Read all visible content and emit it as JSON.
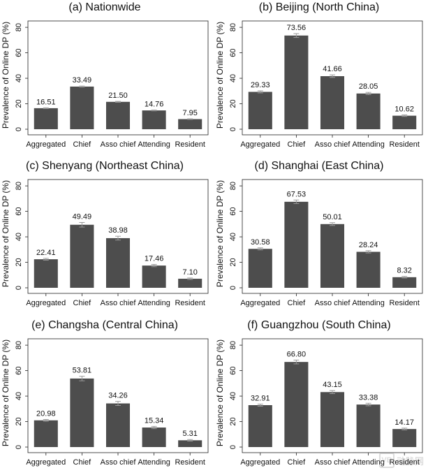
{
  "chart_data": [
    {
      "type": "bar",
      "title": "(a) Nationwide",
      "ylabel": "Prevalence of Online DP (%)",
      "categories": [
        "Aggregated",
        "Chief",
        "Asso chief",
        "Attending",
        "Resident"
      ],
      "values": [
        16.51,
        33.49,
        21.5,
        14.76,
        7.95
      ],
      "value_labels": [
        "16.51",
        "33.49",
        "21.50",
        "14.76",
        "7.95"
      ],
      "error": [
        0.3,
        0.4,
        0.35,
        0.3,
        0.25
      ],
      "ylim": [
        0,
        85
      ],
      "yticks": [
        0,
        20,
        40,
        60,
        80
      ],
      "bar_color": "#4d4d4d",
      "grid": false
    },
    {
      "type": "bar",
      "title": "(b) Beijing (North China)",
      "ylabel": "Prevalence of Online DP (%)",
      "categories": [
        "Aggregated",
        "Chief",
        "Asso chief",
        "Attending",
        "Resident"
      ],
      "values": [
        29.33,
        73.56,
        41.66,
        28.05,
        10.62
      ],
      "value_labels": [
        "29.33",
        "73.56",
        "41.66",
        "28.05",
        "10.62"
      ],
      "error": [
        0.8,
        1.5,
        1.0,
        0.9,
        0.6
      ],
      "ylim": [
        0,
        85
      ],
      "yticks": [
        0,
        20,
        40,
        60,
        80
      ],
      "bar_color": "#4d4d4d",
      "grid": false
    },
    {
      "type": "bar",
      "title": "(c) Shenyang (Northeast China)",
      "ylabel": "Prevalence of Online DP (%)",
      "categories": [
        "Aggregated",
        "Chief",
        "Asso chief",
        "Attending",
        "Resident"
      ],
      "values": [
        22.41,
        49.49,
        38.98,
        17.46,
        7.1
      ],
      "value_labels": [
        "22.41",
        "49.49",
        "38.98",
        "17.46",
        "7.10"
      ],
      "error": [
        0.7,
        1.8,
        1.5,
        0.9,
        0.6
      ],
      "ylim": [
        0,
        85
      ],
      "yticks": [
        0,
        20,
        40,
        60,
        80
      ],
      "bar_color": "#4d4d4d",
      "grid": false
    },
    {
      "type": "bar",
      "title": "(d) Shanghai (East China)",
      "ylabel": "Prevalence of Online DP (%)",
      "categories": [
        "Aggregated",
        "Chief",
        "Asso chief",
        "Attending",
        "Resident"
      ],
      "values": [
        30.58,
        67.53,
        50.01,
        28.24,
        8.32
      ],
      "value_labels": [
        "30.58",
        "67.53",
        "50.01",
        "28.24",
        "8.32"
      ],
      "error": [
        0.8,
        1.4,
        1.1,
        0.9,
        0.6
      ],
      "ylim": [
        0,
        85
      ],
      "yticks": [
        0,
        20,
        40,
        60,
        80
      ],
      "bar_color": "#4d4d4d",
      "grid": false
    },
    {
      "type": "bar",
      "title": "(e) Changsha (Central China)",
      "ylabel": "Prevalence of Online DP (%)",
      "categories": [
        "Aggregated",
        "Chief",
        "Asso chief",
        "Attending",
        "Resident"
      ],
      "values": [
        20.98,
        53.81,
        34.26,
        15.34,
        5.31
      ],
      "value_labels": [
        "20.98",
        "53.81",
        "34.26",
        "15.34",
        "5.31"
      ],
      "error": [
        0.7,
        1.8,
        1.6,
        0.9,
        0.6
      ],
      "ylim": [
        0,
        85
      ],
      "yticks": [
        0,
        20,
        40,
        60,
        80
      ],
      "bar_color": "#4d4d4d",
      "grid": false
    },
    {
      "type": "bar",
      "title": "(f) Guangzhou (South China)",
      "ylabel": "Prevalence of Online DP (%)",
      "categories": [
        "Aggregated",
        "Chief",
        "Asso chief",
        "Attending",
        "Resident"
      ],
      "values": [
        32.91,
        66.8,
        43.15,
        33.38,
        14.17
      ],
      "value_labels": [
        "32.91",
        "66.80",
        "43.15",
        "33.38",
        "14.17"
      ],
      "error": [
        0.8,
        1.5,
        1.2,
        1.0,
        0.7
      ],
      "ylim": [
        0,
        85
      ],
      "yticks": [
        0,
        20,
        40,
        60,
        80
      ],
      "bar_color": "#4d4d4d",
      "grid": false
    }
  ],
  "watermark": {
    "text": "动脉网",
    "logo": "VB"
  }
}
